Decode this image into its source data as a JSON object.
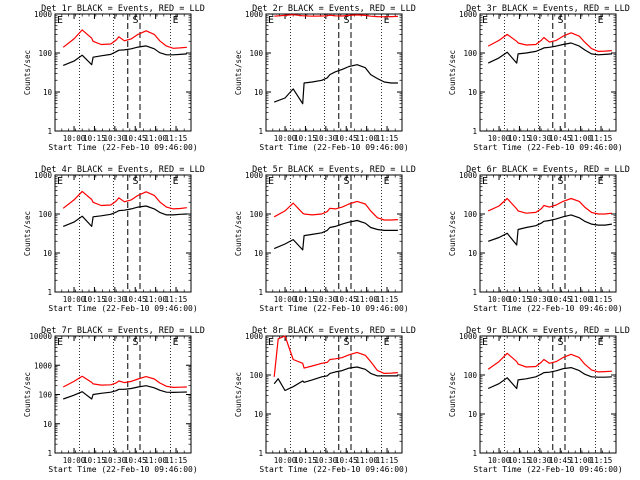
{
  "figure": {
    "common_xlabel": "Start Time (22-Feb-10 09:46:00)",
    "common_ylabel": "Counts/sec",
    "marker_labels": [
      "E",
      "S",
      "E"
    ],
    "colors": {
      "events": "#000000",
      "lld": "#ff0000",
      "background": "#ffffff"
    }
  },
  "chart_data": [
    {
      "type": "line",
      "title": "Det 1r BLACK = Events, RED = LLD",
      "x_ticks": [
        "10:00",
        "10:15",
        "10:30",
        "10:45",
        "11:00",
        "11:15"
      ],
      "y_ticks": [
        "1",
        "10",
        "100",
        "1000"
      ],
      "ylim": [
        1,
        1000
      ],
      "yscale": "log",
      "xlabel": "Start Time (22-Feb-10 09:46:00)",
      "ylabel": "Counts/sec",
      "x": [
        "09:52",
        "10:00",
        "10:06",
        "10:13",
        "10:14",
        "10:20",
        "10:27",
        "10:31",
        "10:33",
        "10:37",
        "10:42",
        "10:47",
        "10:53",
        "10:59",
        "11:03",
        "11:08",
        "11:13",
        "11:18",
        "11:23"
      ],
      "series": [
        {
          "role": "events",
          "color": "#000000",
          "values": [
            48,
            62,
            88,
            50,
            78,
            85,
            92,
            108,
            118,
            120,
            128,
            142,
            152,
            128,
            102,
            90,
            90,
            92,
            95
          ]
        },
        {
          "role": "lld",
          "color": "#ff0000",
          "values": [
            140,
            230,
            390,
            240,
            200,
            165,
            170,
            215,
            260,
            205,
            230,
            300,
            370,
            300,
            205,
            150,
            132,
            135,
            140
          ]
        }
      ]
    },
    {
      "type": "line",
      "title": "Det 2r BLACK = Events, RED = LLD",
      "x_ticks": [
        "10:00",
        "10:15",
        "10:30",
        "10:45",
        "11:00",
        "11:15"
      ],
      "y_ticks": [
        "1",
        "10",
        "100",
        "1000"
      ],
      "ylim": [
        1,
        1000
      ],
      "yscale": "log",
      "xlabel": "Start Time (22-Feb-10 09:46:00)",
      "ylabel": "Counts/sec",
      "x": [
        "09:52",
        "10:00",
        "10:06",
        "10:13",
        "10:14",
        "10:20",
        "10:27",
        "10:31",
        "10:33",
        "10:37",
        "10:42",
        "10:47",
        "10:53",
        "10:59",
        "11:03",
        "11:08",
        "11:13",
        "11:18",
        "11:23"
      ],
      "series": [
        {
          "role": "events",
          "color": "#000000",
          "values": [
            5.5,
            7,
            12,
            5,
            17,
            18,
            20,
            23,
            28,
            33,
            38,
            45,
            50,
            42,
            28,
            22,
            18,
            17,
            17
          ]
        },
        {
          "role": "lld",
          "color": "#ff0000",
          "values": [
            880,
            920,
            960,
            900,
            900,
            880,
            890,
            900,
            930,
            900,
            890,
            920,
            950,
            920,
            880,
            860,
            850,
            860,
            870
          ]
        }
      ]
    },
    {
      "type": "line",
      "title": "Det 3r BLACK = Events, RED = LLD",
      "x_ticks": [
        "10:00",
        "10:15",
        "10:30",
        "10:45",
        "11:00",
        "11:15"
      ],
      "y_ticks": [
        "1",
        "10",
        "100",
        "1000"
      ],
      "ylim": [
        1,
        1000
      ],
      "yscale": "log",
      "xlabel": "Start Time (22-Feb-10 09:46:00)",
      "ylabel": "Counts/sec",
      "x": [
        "09:52",
        "10:00",
        "10:06",
        "10:13",
        "10:14",
        "10:20",
        "10:27",
        "10:31",
        "10:33",
        "10:37",
        "10:42",
        "10:47",
        "10:53",
        "10:59",
        "11:03",
        "11:08",
        "11:13",
        "11:18",
        "11:23"
      ],
      "series": [
        {
          "role": "events",
          "color": "#000000",
          "values": [
            55,
            75,
            105,
            55,
            95,
            100,
            110,
            125,
            135,
            140,
            150,
            165,
            180,
            150,
            120,
            95,
            90,
            92,
            95
          ]
        },
        {
          "role": "lld",
          "color": "#ff0000",
          "values": [
            150,
            210,
            300,
            200,
            180,
            160,
            165,
            210,
            250,
            190,
            210,
            270,
            330,
            270,
            190,
            130,
            110,
            112,
            115
          ]
        }
      ]
    },
    {
      "type": "line",
      "title": "Det 4r BLACK = Events, RED = LLD",
      "x_ticks": [
        "10:00",
        "10:15",
        "10:30",
        "10:45",
        "11:00",
        "11:15"
      ],
      "y_ticks": [
        "1",
        "10",
        "100",
        "1000"
      ],
      "ylim": [
        1,
        1000
      ],
      "yscale": "log",
      "xlabel": "Start Time (22-Feb-10 09:46:00)",
      "ylabel": "Counts/sec",
      "x": [
        "09:52",
        "10:00",
        "10:06",
        "10:13",
        "10:14",
        "10:20",
        "10:27",
        "10:31",
        "10:33",
        "10:37",
        "10:42",
        "10:47",
        "10:53",
        "10:59",
        "11:03",
        "11:08",
        "11:13",
        "11:18",
        "11:23"
      ],
      "series": [
        {
          "role": "events",
          "color": "#000000",
          "values": [
            48,
            62,
            88,
            48,
            85,
            90,
            98,
            112,
            122,
            125,
            135,
            150,
            160,
            135,
            110,
            95,
            95,
            98,
            100
          ]
        },
        {
          "role": "lld",
          "color": "#ff0000",
          "values": [
            140,
            230,
            380,
            235,
            200,
            165,
            170,
            215,
            260,
            205,
            230,
            300,
            370,
            300,
            205,
            150,
            135,
            138,
            145
          ]
        }
      ]
    },
    {
      "type": "line",
      "title": "Det 5r BLACK = Events, RED = LLD",
      "x_ticks": [
        "10:00",
        "10:15",
        "10:30",
        "10:45",
        "11:00",
        "11:15"
      ],
      "y_ticks": [
        "1",
        "10",
        "100",
        "1000"
      ],
      "ylim": [
        1,
        1000
      ],
      "yscale": "log",
      "xlabel": "Start Time (22-Feb-10 09:46:00)",
      "ylabel": "Counts/sec",
      "x": [
        "09:52",
        "10:00",
        "10:06",
        "10:13",
        "10:14",
        "10:20",
        "10:27",
        "10:31",
        "10:33",
        "10:37",
        "10:42",
        "10:47",
        "10:53",
        "10:59",
        "11:03",
        "11:08",
        "11:13",
        "11:18",
        "11:23"
      ],
      "series": [
        {
          "role": "events",
          "color": "#000000",
          "values": [
            13,
            17,
            22,
            12,
            28,
            30,
            33,
            38,
            45,
            48,
            55,
            62,
            68,
            58,
            45,
            40,
            38,
            38,
            38
          ]
        },
        {
          "role": "lld",
          "color": "#ff0000",
          "values": [
            85,
            120,
            190,
            105,
            100,
            95,
            100,
            115,
            140,
            135,
            150,
            180,
            210,
            180,
            120,
            80,
            70,
            70,
            72
          ]
        }
      ]
    },
    {
      "type": "line",
      "title": "Det 6r BLACK = Events, RED = LLD",
      "x_ticks": [
        "10:00",
        "10:15",
        "10:30",
        "10:45",
        "11:00",
        "11:15"
      ],
      "y_ticks": [
        "1",
        "10",
        "100",
        "1000"
      ],
      "ylim": [
        1,
        1000
      ],
      "yscale": "log",
      "xlabel": "Start Time (22-Feb-10 09:46:00)",
      "ylabel": "Counts/sec",
      "x": [
        "09:52",
        "10:00",
        "10:06",
        "10:13",
        "10:14",
        "10:20",
        "10:27",
        "10:31",
        "10:33",
        "10:37",
        "10:42",
        "10:47",
        "10:53",
        "10:59",
        "11:03",
        "11:08",
        "11:13",
        "11:18",
        "11:23"
      ],
      "series": [
        {
          "role": "events",
          "color": "#000000",
          "values": [
            20,
            25,
            32,
            16,
            40,
            45,
            50,
            58,
            65,
            68,
            75,
            85,
            95,
            80,
            65,
            55,
            52,
            52,
            55
          ]
        },
        {
          "role": "lld",
          "color": "#ff0000",
          "values": [
            120,
            160,
            250,
            135,
            120,
            105,
            110,
            135,
            165,
            150,
            170,
            210,
            250,
            210,
            150,
            110,
            100,
            100,
            105
          ]
        }
      ]
    },
    {
      "type": "line",
      "title": "Det 7r BLACK = Events, RED = LLD",
      "x_ticks": [
        "10:00",
        "10:15",
        "10:30",
        "10:45",
        "11:00",
        "11:15"
      ],
      "y_ticks": [
        "1",
        "10",
        "100",
        "1000",
        "10000"
      ],
      "ylim": [
        1,
        10000
      ],
      "yscale": "log",
      "xlabel": "Start Time (22-Feb-10 09:46:00)",
      "ylabel": "Counts/sec",
      "x": [
        "09:52",
        "10:00",
        "10:06",
        "10:13",
        "10:14",
        "10:20",
        "10:27",
        "10:31",
        "10:33",
        "10:37",
        "10:42",
        "10:47",
        "10:53",
        "10:59",
        "11:03",
        "11:08",
        "11:13",
        "11:18",
        "11:23"
      ],
      "series": [
        {
          "role": "events",
          "color": "#000000",
          "values": [
            70,
            95,
            125,
            70,
            100,
            110,
            120,
            135,
            150,
            150,
            160,
            180,
            200,
            170,
            140,
            120,
            118,
            120,
            122
          ]
        },
        {
          "role": "lld",
          "color": "#ff0000",
          "values": [
            180,
            280,
            420,
            260,
            230,
            210,
            215,
            250,
            290,
            255,
            280,
            340,
            410,
            340,
            250,
            190,
            175,
            178,
            180
          ]
        }
      ]
    },
    {
      "type": "line",
      "title": "Det 8r BLACK = Events, RED = LLD",
      "x_ticks": [
        "10:00",
        "10:15",
        "10:30",
        "10:45",
        "11:00",
        "11:15"
      ],
      "y_ticks": [
        "1",
        "10",
        "100",
        "1000"
      ],
      "ylim": [
        1,
        1000
      ],
      "yscale": "log",
      "xlabel": "Start Time (22-Feb-10 09:46:00)",
      "ylabel": "Counts/sec",
      "x": [
        "09:52",
        "09:55",
        "10:00",
        "10:06",
        "10:13",
        "10:14",
        "10:20",
        "10:27",
        "10:31",
        "10:33",
        "10:37",
        "10:42",
        "10:47",
        "10:53",
        "10:59",
        "11:03",
        "11:08",
        "11:13",
        "11:18",
        "11:23"
      ],
      "series": [
        {
          "role": "events",
          "color": "#000000",
          "values": [
            60,
            80,
            40,
            50,
            70,
            65,
            75,
            90,
            95,
            110,
            120,
            130,
            150,
            160,
            140,
            110,
            95,
            95,
            95,
            95
          ]
        },
        {
          "role": "lld",
          "color": "#ff0000",
          "values": [
            90,
            850,
            1000,
            250,
            200,
            150,
            170,
            200,
            210,
            250,
            260,
            280,
            330,
            380,
            320,
            220,
            130,
            110,
            112,
            115
          ]
        }
      ]
    },
    {
      "type": "line",
      "title": "Det 9r BLACK = Events, RED = LLD",
      "x_ticks": [
        "10:00",
        "10:15",
        "10:30",
        "10:45",
        "11:00",
        "11:15"
      ],
      "y_ticks": [
        "1",
        "10",
        "100",
        "1000"
      ],
      "ylim": [
        1,
        1000
      ],
      "yscale": "log",
      "xlabel": "Start Time (22-Feb-10 09:46:00)",
      "ylabel": "Counts/sec",
      "x": [
        "09:52",
        "10:00",
        "10:06",
        "10:13",
        "10:14",
        "10:20",
        "10:27",
        "10:31",
        "10:33",
        "10:37",
        "10:42",
        "10:47",
        "10:53",
        "10:59",
        "11:03",
        "11:08",
        "11:13",
        "11:18",
        "11:23"
      ],
      "series": [
        {
          "role": "events",
          "color": "#000000",
          "values": [
            45,
            60,
            85,
            45,
            75,
            80,
            90,
            105,
            115,
            118,
            128,
            145,
            155,
            130,
            105,
            90,
            88,
            88,
            90
          ]
        },
        {
          "role": "lld",
          "color": "#ff0000",
          "values": [
            140,
            220,
            360,
            220,
            190,
            160,
            165,
            210,
            250,
            200,
            220,
            280,
            340,
            280,
            190,
            135,
            120,
            122,
            125
          ]
        }
      ]
    }
  ]
}
